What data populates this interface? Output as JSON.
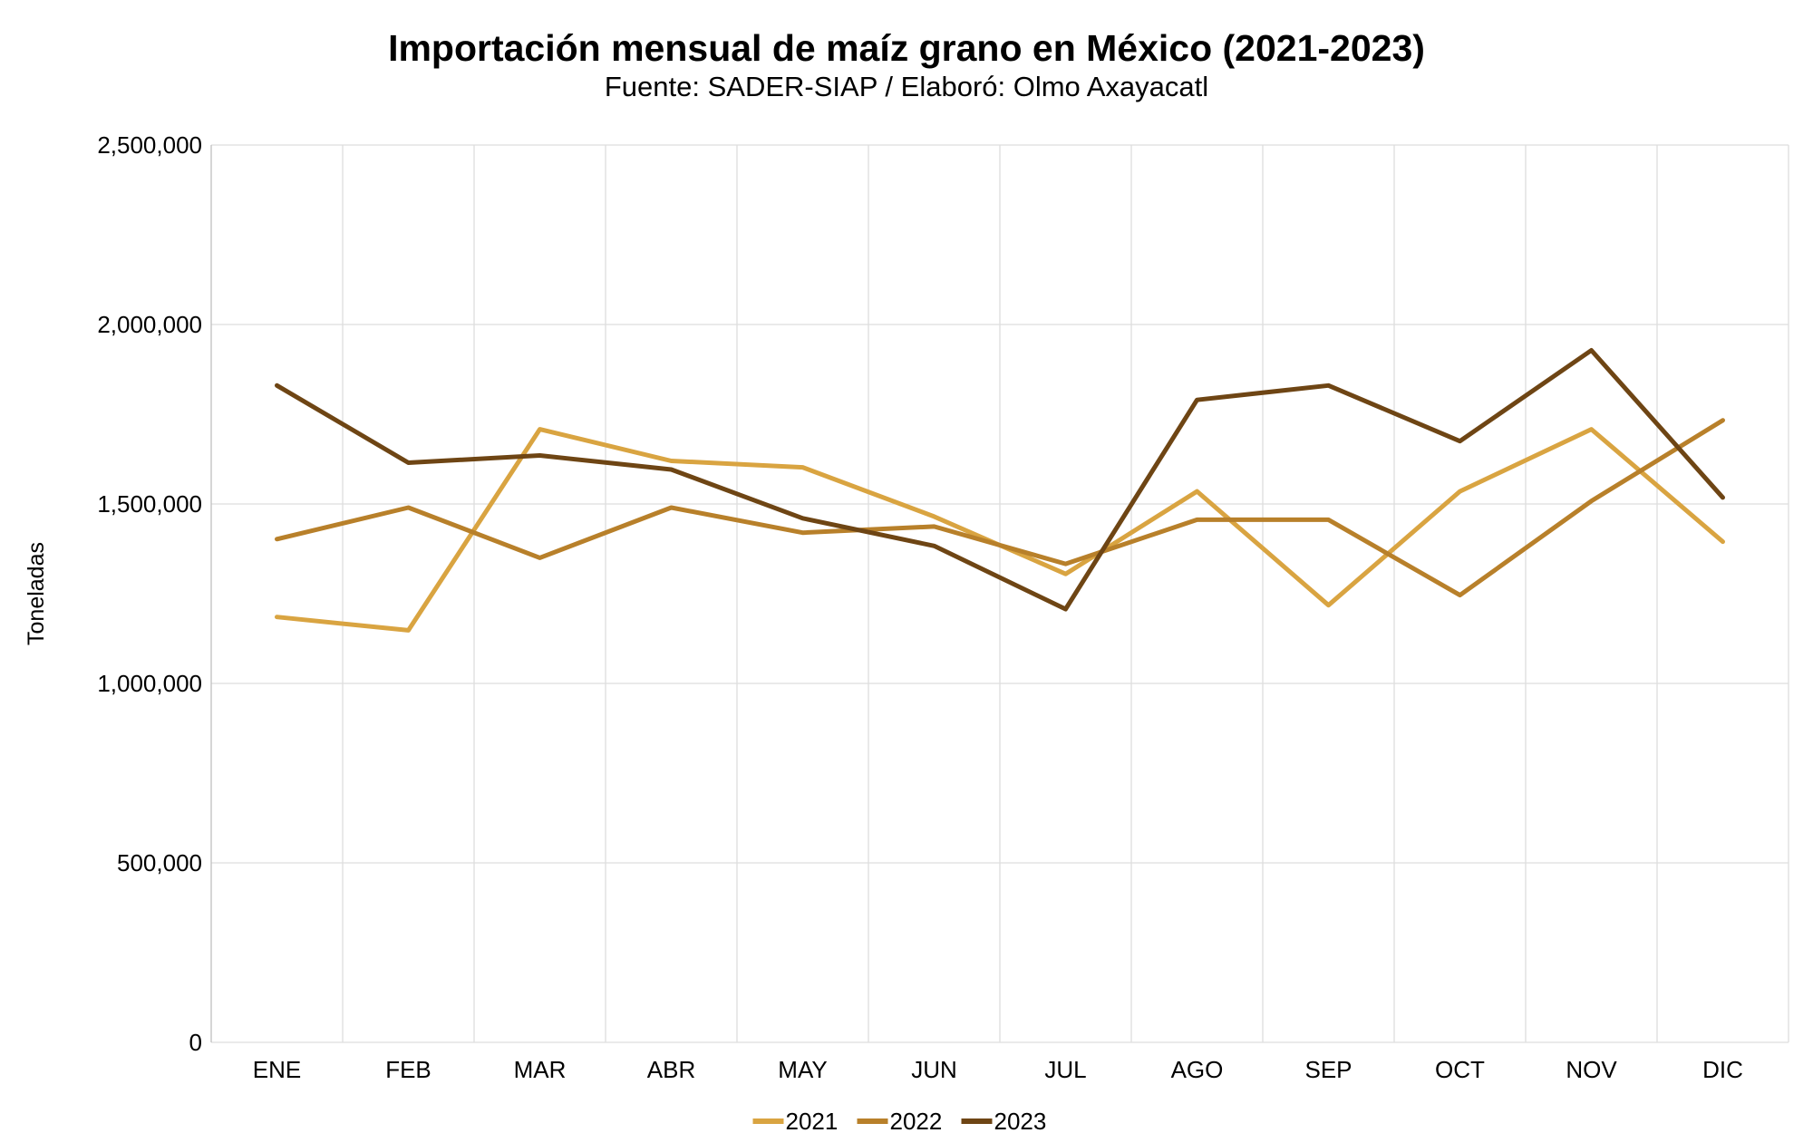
{
  "chart_data": {
    "type": "line",
    "title": "Importación mensual de maíz grano en México (2021-2023)",
    "subtitle": "Fuente: SADER-SIAP / Elaboró: Olmo Axayacatl",
    "xlabel": "",
    "ylabel": "Toneladas",
    "categories": [
      "ENE",
      "FEB",
      "MAR",
      "ABR",
      "MAY",
      "JUN",
      "JUL",
      "AGO",
      "SEP",
      "OCT",
      "NOV",
      "DIC"
    ],
    "ylim": [
      0,
      2500000
    ],
    "yticks": [
      0,
      500000,
      1000000,
      1500000,
      2000000,
      2500000
    ],
    "ytick_labels": [
      "0",
      "500,000",
      "1,000,000",
      "1,500,000",
      "2,000,000",
      "2,500,000"
    ],
    "grid": true,
    "legend_position": "bottom",
    "series": [
      {
        "name": "2021",
        "color": "#D9A441",
        "values": [
          1185000,
          1148000,
          1708000,
          1620000,
          1602000,
          1465000,
          1305000,
          1535000,
          1218000,
          1535000,
          1708000,
          1395000
        ]
      },
      {
        "name": "2022",
        "color": "#B8802A",
        "values": [
          1402000,
          1490000,
          1350000,
          1490000,
          1420000,
          1437000,
          1333000,
          1456000,
          1456000,
          1246000,
          1508000,
          1733000
        ]
      },
      {
        "name": "2023",
        "color": "#6E4514",
        "values": [
          1830000,
          1615000,
          1635000,
          1596000,
          1460000,
          1383000,
          1207000,
          1790000,
          1830000,
          1675000,
          1928000,
          1518000
        ]
      }
    ]
  }
}
